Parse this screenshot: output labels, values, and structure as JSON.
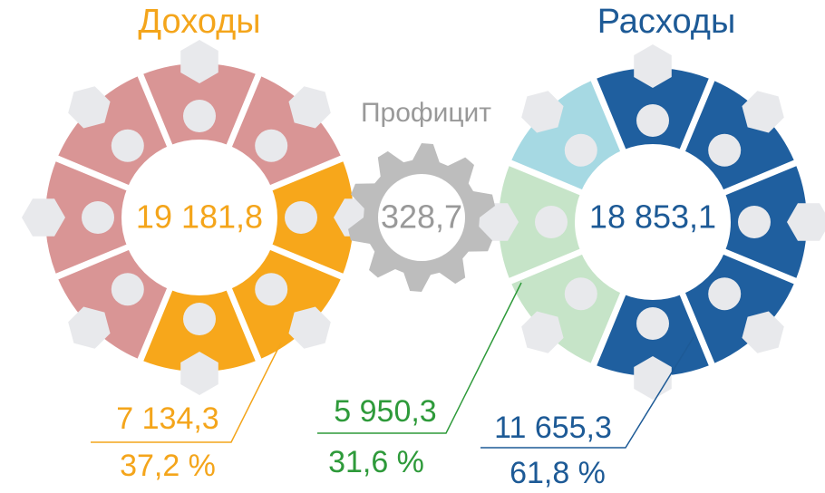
{
  "income": {
    "title": "Доходы",
    "total": "19 181,8",
    "part": "7 134,3",
    "share": "37,2 %"
  },
  "surplus": {
    "title": "Профицит",
    "value": "328,7"
  },
  "expenses": {
    "title": "Расходы",
    "total": "18 853,1",
    "parts": [
      {
        "value": "5 950,3",
        "share": "31,6 %"
      },
      {
        "value": "11 655,3",
        "share": "61,8 %"
      }
    ]
  }
}
